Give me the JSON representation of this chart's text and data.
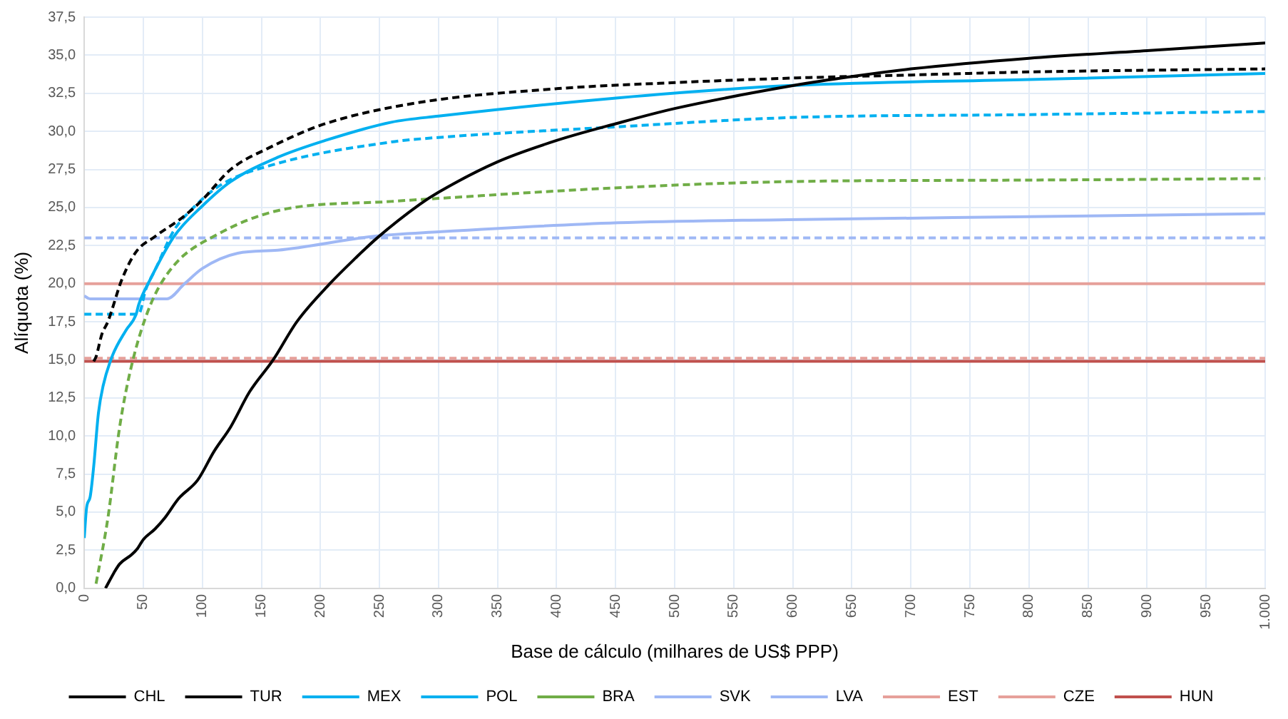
{
  "chart_data": {
    "type": "line",
    "xlabel": "Base de cálculo (milhares de US$ PPP)",
    "ylabel": "Alíquota (%)",
    "grid": true,
    "legend": "bottom",
    "marker": "none",
    "xlim": [
      0,
      1000
    ],
    "xticks": [
      0,
      50,
      100,
      150,
      200,
      250,
      300,
      350,
      400,
      450,
      500,
      550,
      600,
      650,
      700,
      750,
      800,
      850,
      900,
      950,
      {
        "value": 1000,
        "label": "1.000"
      }
    ],
    "ylim": [
      0,
      37.5
    ],
    "yticks": [
      {
        "value": 0,
        "label": "0,0"
      },
      {
        "value": 2.5,
        "label": "2,5"
      },
      {
        "value": 5,
        "label": "5,0"
      },
      {
        "value": 7.5,
        "label": "7,5"
      },
      {
        "value": 10,
        "label": "10,0"
      },
      {
        "value": 12.5,
        "label": "12,5"
      },
      {
        "value": 15,
        "label": "15,0"
      },
      {
        "value": 17.5,
        "label": "17,5"
      },
      {
        "value": 20,
        "label": "20,0"
      },
      {
        "value": 22.5,
        "label": "22,5"
      },
      {
        "value": 25,
        "label": "25,0"
      },
      {
        "value": 27.5,
        "label": "27,5"
      },
      {
        "value": 30,
        "label": "30,0"
      },
      {
        "value": 32.5,
        "label": "32,5"
      },
      {
        "value": 35,
        "label": "35,0"
      },
      {
        "value": 37.5,
        "label": "37,5"
      }
    ],
    "series": [
      {
        "name": "CHL",
        "color": "#000000",
        "line_style": "solid",
        "x": [
          18,
          25,
          30,
          40,
          45,
          50,
          60,
          68,
          80,
          96,
          110,
          124,
          140,
          160,
          180,
          208,
          230,
          248,
          284,
          300,
          350,
          400,
          450,
          500,
          600,
          650,
          700,
          800,
          900,
          1000
        ],
        "values": [
          0,
          1,
          1.6,
          2.2,
          2.6,
          3.2,
          3.9,
          4.6,
          5.9,
          7.1,
          9,
          10.6,
          12.9,
          15,
          17.5,
          20,
          21.7,
          23,
          25.2,
          26,
          28,
          29.4,
          30.5,
          31.5,
          33,
          33.6,
          34.1,
          34.8,
          35.3,
          35.8
        ]
      },
      {
        "name": "TUR",
        "color": "#000000",
        "line_style": "dashed",
        "x": [
          8,
          10,
          15,
          20,
          32,
          44,
          60,
          84,
          100,
          124,
          156,
          204,
          284,
          400,
          500,
          600,
          700,
          800,
          1000
        ],
        "values": [
          14.9,
          15.2,
          16.7,
          17.5,
          20.3,
          22.1,
          23.1,
          24.4,
          25.5,
          27.5,
          28.9,
          30.5,
          31.9,
          32.8,
          33.2,
          33.5,
          33.7,
          33.9,
          34.1
        ]
      },
      {
        "name": "MEX",
        "color": "#00b0f0",
        "line_style": "solid",
        "x": [
          0,
          2,
          5,
          8,
          12,
          16,
          24,
          35,
          44,
          46,
          56,
          76,
          100,
          124,
          164,
          204,
          260,
          300,
          452,
          596,
          800,
          1000
        ],
        "values": [
          3.3,
          5.3,
          6,
          8,
          11.5,
          13.3,
          15.3,
          16.9,
          18,
          18.6,
          20.3,
          23.1,
          25.1,
          26.7,
          28.3,
          29.4,
          30.6,
          31,
          32.2,
          33,
          33.4,
          33.8
        ]
      },
      {
        "name": "POL",
        "color": "#00b0f0",
        "line_style": "dashed",
        "x": [
          0,
          46,
          52,
          60,
          76,
          90,
          116,
          164,
          260,
          300,
          452,
          596,
          800,
          1000
        ],
        "values": [
          18,
          18,
          19.6,
          20.9,
          23.5,
          24.8,
          26.5,
          27.9,
          29.3,
          29.6,
          30.3,
          30.9,
          31.1,
          31.3
        ]
      },
      {
        "name": "BRA",
        "color": "#70ad47",
        "line_style": "dashed",
        "x": [
          10,
          20,
          30,
          40,
          56,
          76,
          112,
          164,
          260,
          300,
          452,
          596,
          800,
          1000
        ],
        "values": [
          0.3,
          4.6,
          10.6,
          14.6,
          18.6,
          21.2,
          23.2,
          24.8,
          25.4,
          25.6,
          26.3,
          26.7,
          26.8,
          26.9
        ]
      },
      {
        "name": "SVK",
        "color": "#9fb8f5",
        "line_style": "solid",
        "x": [
          0,
          5,
          70,
          85,
          100,
          130,
          164,
          244,
          300,
          452,
          596,
          800,
          1000
        ],
        "values": [
          19.2,
          19,
          19,
          20,
          21,
          22,
          22.2,
          23.1,
          23.4,
          24,
          24.2,
          24.4,
          24.6
        ]
      },
      {
        "name": "LVA",
        "color": "#9fb8f5",
        "line_style": "dashed",
        "x": [
          0,
          1000
        ],
        "values": [
          23,
          23
        ]
      },
      {
        "name": "EST",
        "color": "#e6a09a",
        "line_style": "solid",
        "x": [
          0,
          1000
        ],
        "values": [
          20,
          20
        ]
      },
      {
        "name": "CZE",
        "color": "#e6a09a",
        "line_style": "dashed",
        "x": [
          0,
          1000
        ],
        "values": [
          15.1,
          15.1
        ]
      },
      {
        "name": "HUN",
        "color": "#c0504d",
        "line_style": "solid",
        "x": [
          0,
          1000
        ],
        "values": [
          14.9,
          14.9
        ]
      }
    ]
  }
}
